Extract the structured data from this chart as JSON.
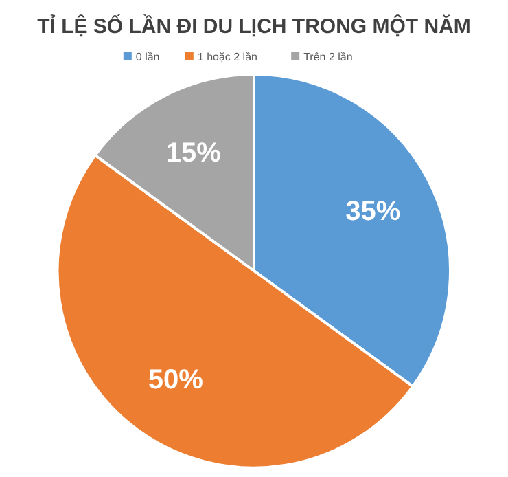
{
  "chart_data": {
    "type": "pie",
    "title": "TỈ LỆ SỐ LẦN ĐI DU LỊCH TRONG MỘT NĂM",
    "categories": [
      "0 lần",
      "1 hoặc 2 lần",
      "Trên 2 lần"
    ],
    "values": [
      35,
      50,
      15
    ],
    "colors": [
      "#5b9bd5",
      "#ed7d31",
      "#a5a5a5"
    ],
    "value_labels": [
      "35%",
      "50%",
      "15%"
    ],
    "legend": "top"
  }
}
